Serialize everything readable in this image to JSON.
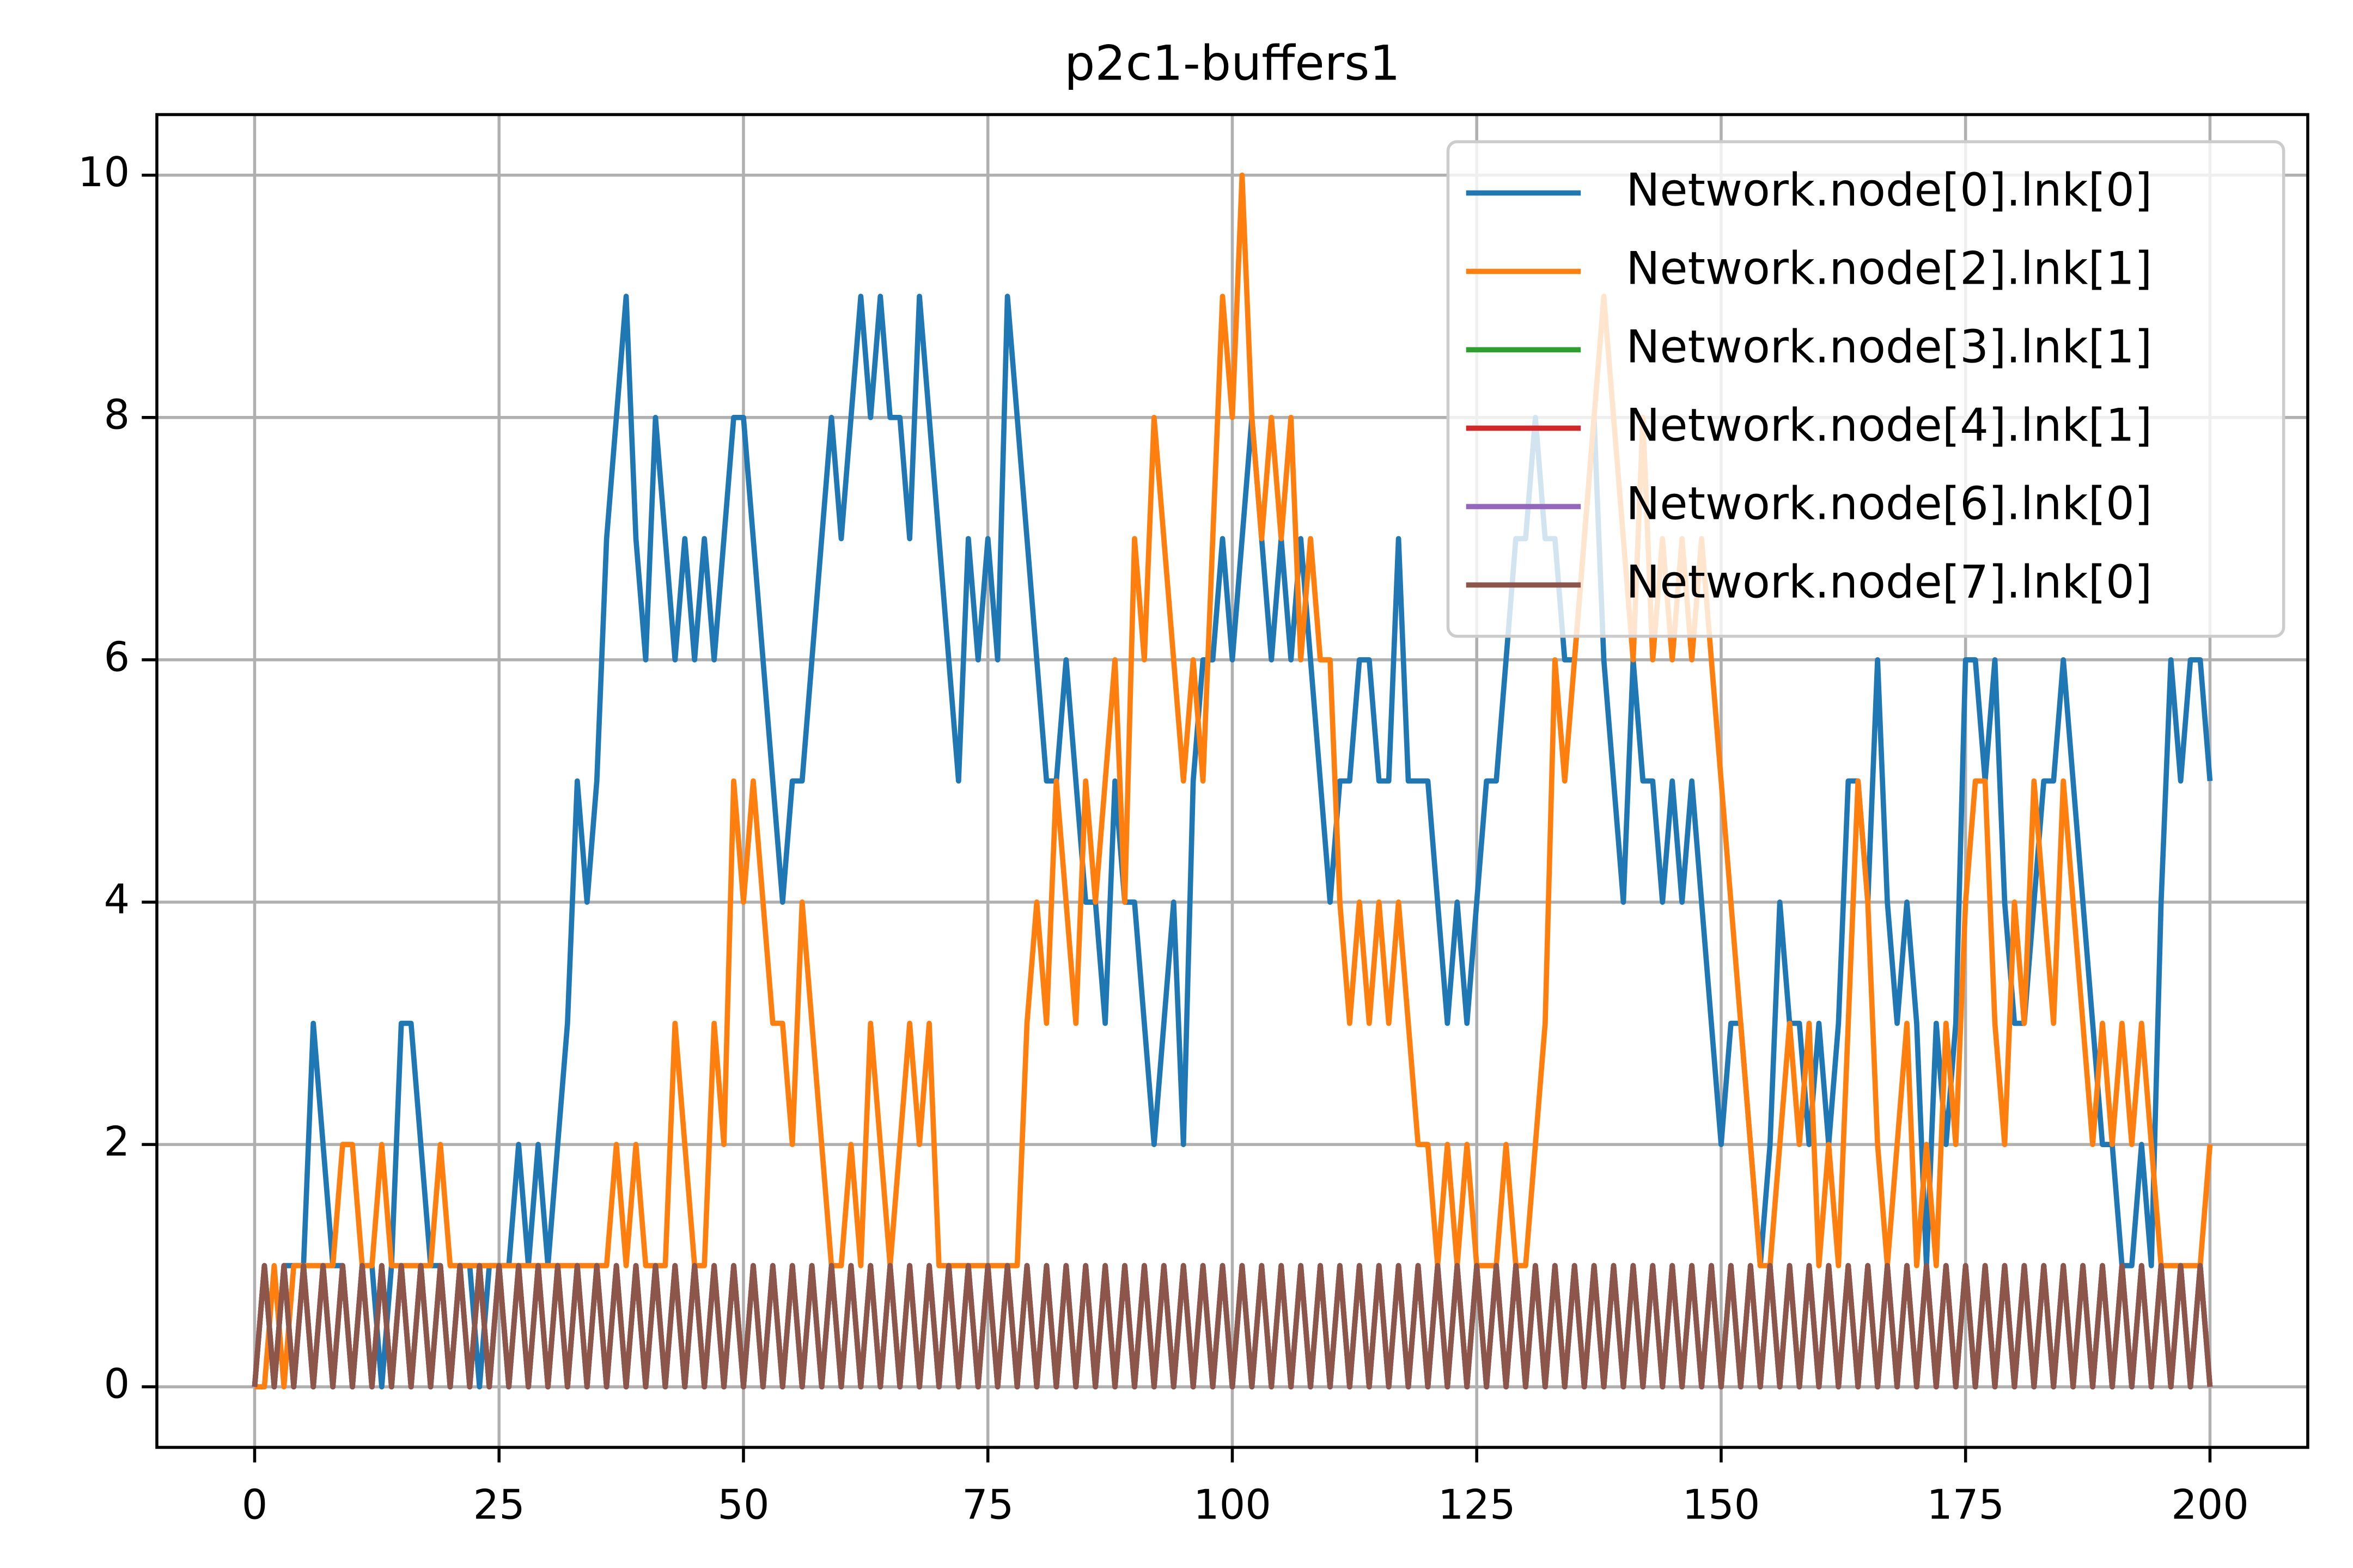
{
  "chart_data": {
    "type": "line",
    "title": "p2c1-buffers1",
    "xlim": [
      -10,
      210
    ],
    "ylim": [
      -0.5,
      10.5
    ],
    "xticks": [
      0,
      25,
      50,
      75,
      100,
      125,
      150,
      175,
      200
    ],
    "yticks": [
      0,
      2,
      4,
      6,
      8,
      10
    ],
    "grid": true,
    "legend": "upper right",
    "x": [
      0,
      1,
      2,
      3,
      4,
      5,
      6,
      7,
      8,
      9,
      10,
      11,
      12,
      13,
      14,
      15,
      16,
      17,
      18,
      19,
      20,
      21,
      22,
      23,
      24,
      25,
      26,
      27,
      28,
      29,
      30,
      31,
      32,
      33,
      34,
      35,
      36,
      37,
      38,
      39,
      40,
      41,
      42,
      43,
      44,
      45,
      46,
      47,
      48,
      49,
      50,
      51,
      52,
      53,
      54,
      55,
      56,
      57,
      58,
      59,
      60,
      61,
      62,
      63,
      64,
      65,
      66,
      67,
      68,
      69,
      70,
      71,
      72,
      73,
      74,
      75,
      76,
      77,
      78,
      79,
      80,
      81,
      82,
      83,
      84,
      85,
      86,
      87,
      88,
      89,
      90,
      91,
      92,
      93,
      94,
      95,
      96,
      97,
      98,
      99,
      100,
      101,
      102,
      103,
      104,
      105,
      106,
      107,
      108,
      109,
      110,
      111,
      112,
      113,
      114,
      115,
      116,
      117,
      118,
      119,
      120,
      121,
      122,
      123,
      124,
      125,
      126,
      127,
      128,
      129,
      130,
      131,
      132,
      133,
      134,
      135,
      136,
      137,
      138,
      139,
      140,
      141,
      142,
      143,
      144,
      145,
      146,
      147,
      148,
      149,
      150,
      151,
      152,
      153,
      154,
      155,
      156,
      157,
      158,
      159,
      160,
      161,
      162,
      163,
      164,
      165,
      166,
      167,
      168,
      169,
      170,
      171,
      172,
      173,
      174,
      175,
      176,
      177,
      178,
      179,
      180,
      181,
      182,
      183,
      184,
      185,
      186,
      187,
      188,
      189,
      190,
      191,
      192,
      193,
      194,
      195,
      196,
      197,
      198,
      199,
      200
    ],
    "series": [
      {
        "name": "Network.node[0].lnk[0]",
        "color": "#1f77b4",
        "values": [
          0,
          1,
          0,
          1,
          1,
          1,
          3,
          2,
          1,
          1,
          0,
          1,
          1,
          0,
          1,
          3,
          3,
          2,
          1,
          1,
          0,
          1,
          1,
          0,
          1,
          1,
          1,
          2,
          1,
          2,
          1,
          2,
          3,
          5,
          4,
          5,
          7,
          8,
          9,
          7,
          6,
          8,
          7,
          6,
          7,
          6,
          7,
          6,
          7,
          8,
          8,
          7,
          6,
          5,
          4,
          5,
          5,
          6,
          7,
          8,
          7,
          8,
          9,
          8,
          9,
          8,
          8,
          7,
          9,
          8,
          7,
          6,
          5,
          7,
          6,
          7,
          6,
          9,
          8,
          7,
          6,
          5,
          5,
          6,
          5,
          4,
          4,
          3,
          5,
          4,
          4,
          3,
          2,
          3,
          4,
          2,
          5,
          6,
          6,
          7,
          6,
          7,
          8,
          7,
          6,
          7,
          6,
          7,
          6,
          5,
          4,
          5,
          5,
          6,
          6,
          5,
          5,
          7,
          5,
          5,
          5,
          4,
          3,
          4,
          3,
          4,
          5,
          5,
          6,
          7,
          7,
          8,
          7,
          7,
          6,
          6,
          7,
          8,
          6,
          5,
          4,
          6,
          5,
          5,
          4,
          5,
          4,
          5,
          4,
          3,
          2,
          3,
          3,
          2,
          1,
          2,
          4,
          3,
          3,
          2,
          3,
          2,
          3,
          5,
          5,
          4,
          6,
          4,
          3,
          4,
          3,
          1,
          3,
          2,
          3,
          6,
          6,
          5,
          6,
          4,
          3,
          3,
          4,
          5,
          5,
          6,
          5,
          4,
          3,
          2,
          2,
          1,
          1,
          2,
          1,
          4,
          6,
          5,
          6,
          6,
          5
        ]
      },
      {
        "name": "Network.node[2].lnk[1]",
        "color": "#ff7f0e",
        "values": [
          0,
          0,
          1,
          0,
          1,
          1,
          1,
          1,
          1,
          2,
          2,
          1,
          1,
          2,
          1,
          1,
          1,
          1,
          1,
          2,
          1,
          1,
          1,
          1,
          1,
          1,
          1,
          1,
          1,
          1,
          1,
          1,
          1,
          1,
          1,
          1,
          1,
          2,
          1,
          2,
          1,
          1,
          1,
          3,
          2,
          1,
          1,
          3,
          2,
          5,
          4,
          5,
          4,
          3,
          3,
          2,
          4,
          3,
          2,
          1,
          1,
          2,
          1,
          3,
          2,
          1,
          2,
          3,
          2,
          3,
          1,
          1,
          1,
          1,
          1,
          1,
          1,
          1,
          1,
          3,
          4,
          3,
          5,
          4,
          3,
          5,
          4,
          5,
          6,
          4,
          7,
          6,
          8,
          7,
          6,
          5,
          6,
          5,
          7,
          9,
          8,
          10,
          8,
          7,
          8,
          7,
          8,
          6,
          7,
          6,
          6,
          4,
          3,
          4,
          3,
          4,
          3,
          4,
          3,
          2,
          2,
          1,
          2,
          1,
          2,
          1,
          1,
          1,
          2,
          1,
          1,
          2,
          3,
          6,
          5,
          6,
          7,
          8,
          9,
          8,
          7,
          6,
          8,
          6,
          7,
          6,
          7,
          6,
          7,
          6,
          5,
          4,
          3,
          2,
          1,
          1,
          2,
          3,
          2,
          3,
          1,
          2,
          1,
          3,
          5,
          4,
          2,
          1,
          2,
          3,
          1,
          2,
          1,
          3,
          2,
          4,
          5,
          5,
          3,
          2,
          4,
          3,
          5,
          4,
          3,
          5,
          4,
          3,
          2,
          3,
          2,
          3,
          2,
          3,
          2,
          1,
          1,
          1,
          1,
          1,
          2
        ]
      },
      {
        "name": "Network.node[3].lnk[1]",
        "color": "#2ca02c",
        "values": [
          0,
          1,
          0,
          1,
          0,
          1,
          0,
          1,
          0,
          1,
          0,
          1,
          0,
          1,
          0,
          1,
          0,
          1,
          0,
          1,
          0,
          1,
          0,
          1,
          0,
          1,
          0,
          1,
          0,
          1,
          0,
          1,
          0,
          1,
          0,
          1,
          0,
          1,
          0,
          1,
          0,
          1,
          0,
          1,
          0,
          1,
          0,
          1,
          0,
          1,
          0,
          1,
          0,
          1,
          0,
          1,
          0,
          1,
          0,
          1,
          0,
          1,
          0,
          1,
          0,
          1,
          0,
          1,
          0,
          1,
          0,
          1,
          0,
          1,
          0,
          1,
          0,
          1,
          0,
          1,
          0,
          1,
          0,
          1,
          0,
          1,
          0,
          1,
          0,
          1,
          0,
          1,
          0,
          1,
          0,
          1,
          0,
          1,
          0,
          1,
          0,
          1,
          0,
          1,
          0,
          1,
          0,
          1,
          0,
          1,
          0,
          1,
          0,
          1,
          0,
          1,
          0,
          1,
          0,
          1,
          0,
          1,
          0,
          1,
          0,
          1,
          0,
          1,
          0,
          1,
          0,
          1,
          0,
          1,
          0,
          1,
          0,
          1,
          0,
          1,
          0,
          1,
          0,
          1,
          0,
          1,
          0,
          1,
          0,
          1,
          0,
          1,
          0,
          1,
          0,
          1,
          0,
          1,
          0,
          1,
          0,
          1,
          0,
          1,
          0,
          1,
          0,
          1,
          0,
          1,
          0,
          1,
          0,
          1,
          0,
          1,
          0,
          1,
          0,
          1,
          0,
          1,
          0,
          1,
          0,
          1,
          0,
          1,
          0,
          1,
          0,
          1,
          0,
          1,
          0,
          1,
          0,
          1,
          0,
          1,
          0
        ]
      },
      {
        "name": "Network.node[4].lnk[1]",
        "color": "#d62728",
        "values": [
          0,
          1,
          0,
          1,
          0,
          1,
          0,
          1,
          0,
          1,
          0,
          1,
          0,
          1,
          0,
          1,
          0,
          1,
          0,
          1,
          0,
          1,
          0,
          1,
          0,
          1,
          0,
          1,
          0,
          1,
          0,
          1,
          0,
          1,
          0,
          1,
          0,
          1,
          0,
          1,
          0,
          1,
          0,
          1,
          0,
          1,
          0,
          1,
          0,
          1,
          0,
          1,
          0,
          1,
          0,
          1,
          0,
          1,
          0,
          1,
          0,
          1,
          0,
          1,
          0,
          1,
          0,
          1,
          0,
          1,
          0,
          1,
          0,
          1,
          0,
          1,
          0,
          1,
          0,
          1,
          0,
          1,
          0,
          1,
          0,
          1,
          0,
          1,
          0,
          1,
          0,
          1,
          0,
          1,
          0,
          1,
          0,
          1,
          0,
          1,
          0,
          1,
          0,
          1,
          0,
          1,
          0,
          1,
          0,
          1,
          0,
          1,
          0,
          1,
          0,
          1,
          0,
          1,
          0,
          1,
          0,
          1,
          0,
          1,
          0,
          1,
          0,
          1,
          0,
          1,
          0,
          1,
          0,
          1,
          0,
          1,
          0,
          1,
          0,
          1,
          0,
          1,
          0,
          1,
          0,
          1,
          0,
          1,
          0,
          1,
          0,
          1,
          0,
          1,
          0,
          1,
          0,
          1,
          0,
          1,
          0,
          1,
          0,
          1,
          0,
          1,
          0,
          1,
          0,
          1,
          0,
          1,
          0,
          1,
          0,
          1,
          0,
          1,
          0,
          1,
          0,
          1,
          0,
          1,
          0,
          1,
          0,
          1,
          0,
          1,
          0,
          1,
          0,
          1,
          0,
          1,
          0,
          1,
          0,
          1,
          0
        ]
      },
      {
        "name": "Network.node[6].lnk[0]",
        "color": "#9467bd",
        "values": [
          0,
          1,
          0,
          1,
          0,
          1,
          0,
          1,
          0,
          1,
          0,
          1,
          0,
          1,
          0,
          1,
          0,
          1,
          0,
          1,
          0,
          1,
          0,
          1,
          0,
          1,
          0,
          1,
          0,
          1,
          0,
          1,
          0,
          1,
          0,
          1,
          0,
          1,
          0,
          1,
          0,
          1,
          0,
          1,
          0,
          1,
          0,
          1,
          0,
          1,
          0,
          1,
          0,
          1,
          0,
          1,
          0,
          1,
          0,
          1,
          0,
          1,
          0,
          1,
          0,
          1,
          0,
          1,
          0,
          1,
          0,
          1,
          0,
          1,
          0,
          1,
          0,
          1,
          0,
          1,
          0,
          1,
          0,
          1,
          0,
          1,
          0,
          1,
          0,
          1,
          0,
          1,
          0,
          1,
          0,
          1,
          0,
          1,
          0,
          1,
          0,
          1,
          0,
          1,
          0,
          1,
          0,
          1,
          0,
          1,
          0,
          1,
          0,
          1,
          0,
          1,
          0,
          1,
          0,
          1,
          0,
          1,
          0,
          1,
          0,
          1,
          0,
          1,
          0,
          1,
          0,
          1,
          0,
          1,
          0,
          1,
          0,
          1,
          0,
          1,
          0,
          1,
          0,
          1,
          0,
          1,
          0,
          1,
          0,
          1,
          0,
          1,
          0,
          1,
          0,
          1,
          0,
          1,
          0,
          1,
          0,
          1,
          0,
          1,
          0,
          1,
          0,
          1,
          0,
          1,
          0,
          1,
          0,
          1,
          0,
          1,
          0,
          1,
          0,
          1,
          0,
          1,
          0,
          1,
          0,
          1,
          0,
          1,
          0,
          1,
          0,
          1,
          0,
          1,
          0,
          1,
          0,
          1,
          0,
          1,
          0
        ]
      },
      {
        "name": "Network.node[7].lnk[0]",
        "color": "#8c564b",
        "values": [
          0,
          1,
          0,
          1,
          0,
          1,
          0,
          1,
          0,
          1,
          0,
          1,
          0,
          1,
          0,
          1,
          0,
          1,
          0,
          1,
          0,
          1,
          0,
          1,
          0,
          1,
          0,
          1,
          0,
          1,
          0,
          1,
          0,
          1,
          0,
          1,
          0,
          1,
          0,
          1,
          0,
          1,
          0,
          1,
          0,
          1,
          0,
          1,
          0,
          1,
          0,
          1,
          0,
          1,
          0,
          1,
          0,
          1,
          0,
          1,
          0,
          1,
          0,
          1,
          0,
          1,
          0,
          1,
          0,
          1,
          0,
          1,
          0,
          1,
          0,
          1,
          0,
          1,
          0,
          1,
          0,
          1,
          0,
          1,
          0,
          1,
          0,
          1,
          0,
          1,
          0,
          1,
          0,
          1,
          0,
          1,
          0,
          1,
          0,
          1,
          0,
          1,
          0,
          1,
          0,
          1,
          0,
          1,
          0,
          1,
          0,
          1,
          0,
          1,
          0,
          1,
          0,
          1,
          0,
          1,
          0,
          1,
          0,
          1,
          0,
          1,
          0,
          1,
          0,
          1,
          0,
          1,
          0,
          1,
          0,
          1,
          0,
          1,
          0,
          1,
          0,
          1,
          0,
          1,
          0,
          1,
          0,
          1,
          0,
          1,
          0,
          1,
          0,
          1,
          0,
          1,
          0,
          1,
          0,
          1,
          0,
          1,
          0,
          1,
          0,
          1,
          0,
          1,
          0,
          1,
          0,
          1,
          0,
          1,
          0,
          1,
          0,
          1,
          0,
          1,
          0,
          1,
          0,
          1,
          0,
          1,
          0,
          1,
          0,
          1,
          0,
          1,
          0,
          1,
          0,
          1,
          0,
          1,
          0,
          1,
          0
        ]
      }
    ]
  }
}
